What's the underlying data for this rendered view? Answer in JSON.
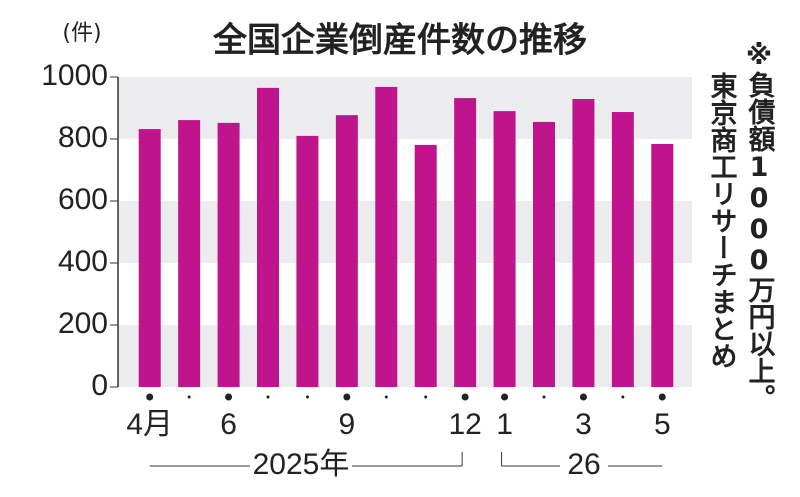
{
  "chart_data": {
    "type": "bar",
    "title": "全国企業倒産件数の推移",
    "unit_label": "(件)",
    "notes": [
      "※負債額1000万円以上。",
      "東京商工リサーチまとめ"
    ],
    "categories": [
      "4月",
      null,
      "6",
      null,
      null,
      "9",
      null,
      null,
      "12",
      "1",
      null,
      "3",
      null,
      "5"
    ],
    "year_labels": [
      "2025年",
      "26"
    ],
    "values": [
      832,
      861,
      852,
      965,
      810,
      877,
      968,
      781,
      932,
      890,
      855,
      929,
      887,
      784
    ],
    "color": "#c0148c",
    "ylim": [
      0,
      1000
    ],
    "yticks": [
      0,
      200,
      400,
      600,
      800,
      1000
    ],
    "bands": true
  }
}
